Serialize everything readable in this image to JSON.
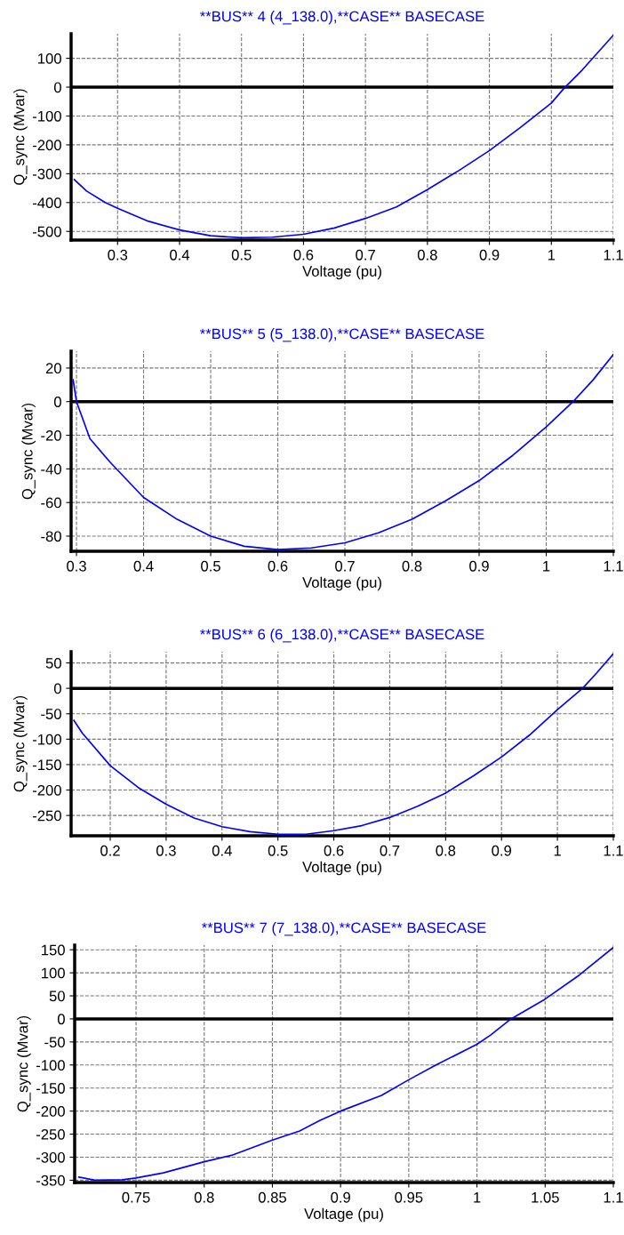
{
  "chart_data": [
    {
      "type": "line",
      "title": "**BUS** 4 (4_138.0),**CASE** BASECASE",
      "xlabel": "Voltage (pu)",
      "ylabel": "Q_sync (Mvar)",
      "xlim": [
        0.225,
        1.1
      ],
      "ylim": [
        -530,
        185
      ],
      "xticks": [
        0.3,
        0.4,
        0.5,
        0.6,
        0.7,
        0.8,
        0.9,
        1,
        1.1
      ],
      "yticks": [
        -500,
        -400,
        -300,
        -200,
        -100,
        0,
        100
      ],
      "grid": true,
      "ref_lines": [
        {
          "axis": "y",
          "value": 0,
          "color": "#000000"
        }
      ],
      "series": [
        {
          "color": "#0000ff",
          "x": [
            0.23,
            0.25,
            0.28,
            0.3,
            0.35,
            0.4,
            0.45,
            0.5,
            0.55,
            0.6,
            0.65,
            0.7,
            0.75,
            0.8,
            0.85,
            0.9,
            0.95,
            1.0,
            1.02,
            1.05,
            1.1
          ],
          "values": [
            -320,
            -360,
            -400,
            -420,
            -465,
            -495,
            -515,
            -522,
            -520,
            -510,
            -488,
            -455,
            -415,
            -355,
            -290,
            -220,
            -140,
            -55,
            -5,
            60,
            180
          ]
        }
      ]
    },
    {
      "type": "line",
      "title": "**BUS** 5 (5_138.0),**CASE** BASECASE",
      "xlabel": "Voltage (pu)",
      "ylabel": "Q_sync (Mvar)",
      "xlim": [
        0.292,
        1.1
      ],
      "ylim": [
        -89,
        30
      ],
      "xticks": [
        0.3,
        0.4,
        0.5,
        0.6,
        0.7,
        0.8,
        0.9,
        1,
        1.1
      ],
      "yticks": [
        -80,
        -60,
        -40,
        -20,
        0,
        20
      ],
      "grid": true,
      "ref_lines": [
        {
          "axis": "y",
          "value": 0,
          "color": "#000000"
        }
      ],
      "series": [
        {
          "color": "#0000ff",
          "x": [
            0.295,
            0.3,
            0.32,
            0.35,
            0.4,
            0.45,
            0.5,
            0.55,
            0.6,
            0.65,
            0.7,
            0.75,
            0.8,
            0.85,
            0.9,
            0.95,
            1.0,
            1.04,
            1.07,
            1.1
          ],
          "values": [
            13,
            0,
            -22,
            -36,
            -57,
            -70,
            -80,
            -86,
            -88,
            -87,
            -84,
            -78,
            -70,
            -59,
            -47,
            -32,
            -15,
            0,
            13,
            28
          ]
        }
      ]
    },
    {
      "type": "line",
      "title": "**BUS** 6 (6_138.0),**CASE** BASECASE",
      "xlabel": "Voltage (pu)",
      "ylabel": "Q_sync (Mvar)",
      "xlim": [
        0.13,
        1.1
      ],
      "ylim": [
        -290,
        72
      ],
      "xticks": [
        0.2,
        0.3,
        0.4,
        0.5,
        0.6,
        0.7,
        0.8,
        0.9,
        1,
        1.1
      ],
      "yticks": [
        -250,
        -200,
        -150,
        -100,
        -50,
        0,
        50
      ],
      "grid": true,
      "ref_lines": [
        {
          "axis": "y",
          "value": 0,
          "color": "#000000"
        }
      ],
      "series": [
        {
          "color": "#0000ff",
          "x": [
            0.135,
            0.15,
            0.2,
            0.25,
            0.3,
            0.35,
            0.4,
            0.45,
            0.5,
            0.55,
            0.6,
            0.65,
            0.7,
            0.75,
            0.8,
            0.85,
            0.9,
            0.95,
            1.0,
            1.045,
            1.07,
            1.1
          ],
          "values": [
            -63,
            -88,
            -152,
            -195,
            -228,
            -255,
            -272,
            -282,
            -287,
            -287,
            -280,
            -270,
            -254,
            -232,
            -206,
            -172,
            -135,
            -92,
            -42,
            0,
            30,
            68
          ]
        }
      ]
    },
    {
      "type": "line",
      "title": "**BUS** 7 (7_138.0),**CASE** BASECASE",
      "xlabel": "Voltage (pu)",
      "ylabel": "Q_sync (Mvar)",
      "xlim": [
        0.705,
        1.1
      ],
      "ylim": [
        -355,
        160
      ],
      "xticks": [
        0.75,
        0.8,
        0.85,
        0.9,
        0.95,
        1,
        1.05,
        1.1
      ],
      "yticks": [
        -350,
        -300,
        -250,
        -200,
        -150,
        -100,
        -50,
        0,
        50,
        100,
        150
      ],
      "grid": true,
      "ref_lines": [
        {
          "axis": "y",
          "value": 0,
          "color": "#000000"
        }
      ],
      "series": [
        {
          "color": "#0000ff",
          "x": [
            0.708,
            0.72,
            0.74,
            0.75,
            0.77,
            0.8,
            0.82,
            0.85,
            0.87,
            0.885,
            0.9,
            0.93,
            0.95,
            0.97,
            1.0,
            1.01,
            1.025,
            1.05,
            1.075,
            1.1
          ],
          "values": [
            -343,
            -350,
            -349,
            -345,
            -334,
            -310,
            -296,
            -263,
            -243,
            -220,
            -200,
            -166,
            -132,
            -100,
            -55,
            -35,
            0,
            43,
            95,
            155
          ]
        }
      ]
    }
  ]
}
